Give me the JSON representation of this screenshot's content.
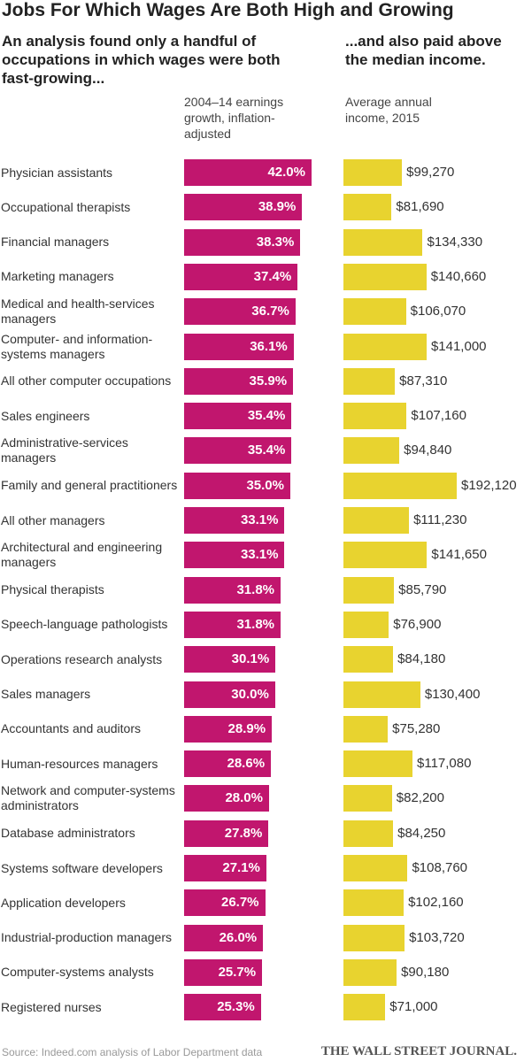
{
  "chart_data": {
    "type": "bar",
    "title": "Jobs For Which Wages Are Both High and Growing",
    "subtitles": [
      "An analysis found only a handful of occupations in which wages were both fast-growing...",
      "...and also paid above the median income."
    ],
    "categories": [
      "Physician assistants",
      "Occupational therapists",
      "Financial managers",
      "Marketing managers",
      "Medical and health-services managers",
      "Computer- and information-systems managers",
      "All other computer occupations",
      "Sales engineers",
      "Administrative-services managers",
      "Family and general practitioners",
      "All other managers",
      "Architectural and engineering managers",
      "Physical therapists",
      "Speech-language pathologists",
      "Operations research analysts",
      "Sales managers",
      "Accountants and auditors",
      "Human-resources managers",
      "Network and computer-systems administrators",
      "Database administrators",
      "Systems software developers",
      "Application developers",
      "Industrial-production managers",
      "Computer-systems analysts",
      "Registered nurses"
    ],
    "series": [
      {
        "name": "2004–14 earnings growth, inflation-adjusted",
        "color": "#c1166e",
        "values": [
          42.0,
          38.9,
          38.3,
          37.4,
          36.7,
          36.1,
          35.9,
          35.4,
          35.4,
          35.0,
          33.1,
          33.1,
          31.8,
          31.8,
          30.1,
          30.0,
          28.9,
          28.6,
          28.0,
          27.8,
          27.1,
          26.7,
          26.0,
          25.7,
          25.3
        ],
        "value_labels": [
          "42.0%",
          "38.9%",
          "38.3%",
          "37.4%",
          "36.7%",
          "36.1%",
          "35.9%",
          "35.4%",
          "35.4%",
          "35.0%",
          "33.1%",
          "33.1%",
          "31.8%",
          "31.8%",
          "30.1%",
          "30.0%",
          "28.9%",
          "28.6%",
          "28.0%",
          "27.8%",
          "27.1%",
          "26.7%",
          "26.0%",
          "25.7%",
          "25.3%"
        ]
      },
      {
        "name": "Average annual income, 2015",
        "color": "#e8d32f",
        "values": [
          99270,
          81690,
          134330,
          140660,
          106070,
          141000,
          87310,
          107160,
          94840,
          192120,
          111230,
          141650,
          85790,
          76900,
          84180,
          130400,
          75280,
          117080,
          82200,
          84250,
          108760,
          102160,
          103720,
          90180,
          71000
        ],
        "value_labels": [
          "$99,270",
          "$81,690",
          "$134,330",
          "$140,660",
          "$106,070",
          "$141,000",
          "$87,310",
          "$107,160",
          "$94,840",
          "$192,120",
          "$111,230",
          "$141,650",
          "$85,790",
          "$76,900",
          "$84,180",
          "$130,400",
          "$75,280",
          "$117,080",
          "$82,200",
          "$84,250",
          "$108,760",
          "$102,160",
          "$103,720",
          "$90,180",
          "$71,000"
        ]
      }
    ],
    "source": "Source: Indeed.com analysis of Labor Department data",
    "publisher": "THE WALL STREET JOURNAL."
  }
}
